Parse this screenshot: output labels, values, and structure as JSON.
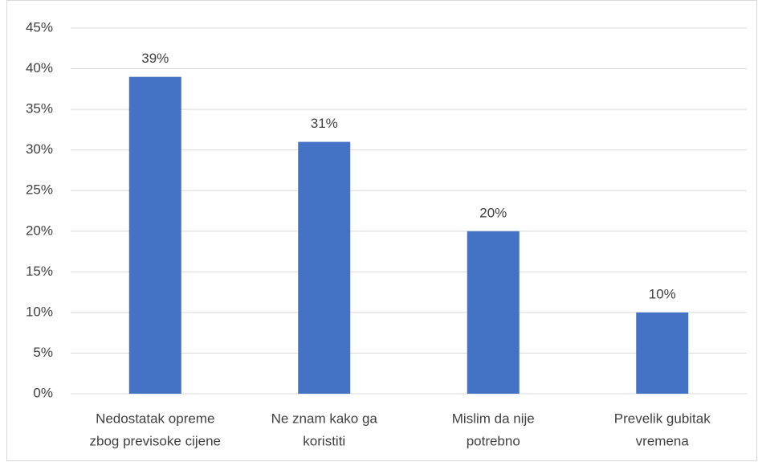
{
  "chart_data": {
    "type": "bar",
    "categories": [
      [
        "Nedostatak opreme",
        "zbog previsoke cijene"
      ],
      [
        "Ne znam kako ga",
        "koristiti"
      ],
      [
        "Mislim da nije",
        "potrebno"
      ],
      [
        "Prevelik gubitak",
        "vremena"
      ]
    ],
    "values": [
      39,
      31,
      20,
      10
    ],
    "value_labels": [
      "39%",
      "31%",
      "20%",
      "10%"
    ],
    "color": "#4472c4",
    "ylim": [
      0,
      45
    ],
    "yticks": [
      {
        "value": 0,
        "label": "0%"
      },
      {
        "value": 5,
        "label": "5%"
      },
      {
        "value": 10,
        "label": "10%"
      },
      {
        "value": 15,
        "label": "15%"
      },
      {
        "value": 20,
        "label": "20%"
      },
      {
        "value": 25,
        "label": "25%"
      },
      {
        "value": 30,
        "label": "30%"
      },
      {
        "value": 35,
        "label": "35%"
      },
      {
        "value": 40,
        "label": "40%"
      },
      {
        "value": 45,
        "label": "45%"
      }
    ],
    "grid": true
  }
}
